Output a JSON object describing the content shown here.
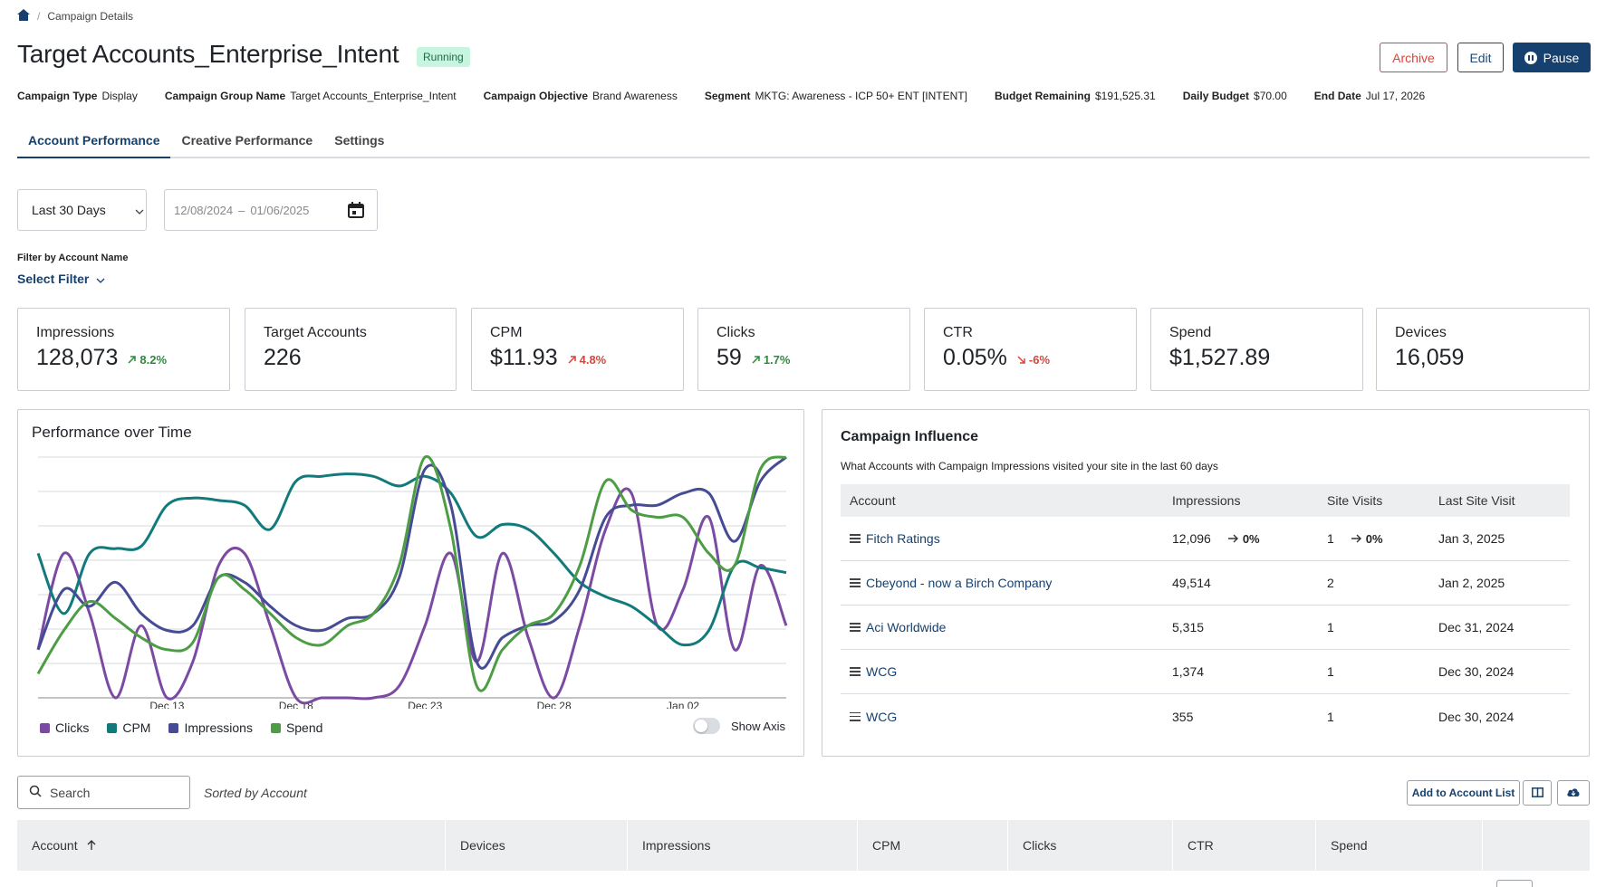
{
  "breadcrumb": {
    "home_icon": "home-icon",
    "current": "Campaign Details"
  },
  "campaign": {
    "title": "Target Accounts_Enterprise_Intent",
    "status": "Running",
    "actions": {
      "archive": "Archive",
      "edit": "Edit",
      "pause": "Pause"
    },
    "meta": [
      {
        "label": "Campaign Type",
        "value": "Display"
      },
      {
        "label": "Campaign Group Name",
        "value": "Target Accounts_Enterprise_Intent"
      },
      {
        "label": "Campaign Objective",
        "value": "Brand Awareness"
      },
      {
        "label": "Segment",
        "value": "MKTG: Awareness - ICP 50+ ENT [INTENT]"
      },
      {
        "label": "Budget Remaining",
        "value": "$191,525.31"
      },
      {
        "label": "Daily Budget",
        "value": "$70.00"
      },
      {
        "label": "End Date",
        "value": "Jul 17, 2026"
      }
    ]
  },
  "tabs": [
    {
      "label": "Account Performance",
      "active": true
    },
    {
      "label": "Creative Performance",
      "active": false
    },
    {
      "label": "Settings",
      "active": false
    }
  ],
  "filters": {
    "range": "Last 30 Days",
    "date_start": "12/08/2024",
    "date_sep": "–",
    "date_end": "01/06/2025",
    "account_filter_label": "Filter by Account Name",
    "account_filter_value": "Select Filter"
  },
  "kpis": [
    {
      "label": "Impressions",
      "value": "128,073",
      "change": "8.2%",
      "direction": "up",
      "tone": "good"
    },
    {
      "label": "Target Accounts",
      "value": "226",
      "change": "",
      "direction": "",
      "tone": ""
    },
    {
      "label": "CPM",
      "value": "$11.93",
      "change": "4.8%",
      "direction": "up",
      "tone": "bad"
    },
    {
      "label": "Clicks",
      "value": "59",
      "change": "1.7%",
      "direction": "up",
      "tone": "good"
    },
    {
      "label": "CTR",
      "value": "0.05%",
      "change": "-6%",
      "direction": "down",
      "tone": "bad"
    },
    {
      "label": "Spend",
      "value": "$1,527.89",
      "change": "",
      "direction": "",
      "tone": ""
    },
    {
      "label": "Devices",
      "value": "16,059",
      "change": "",
      "direction": "",
      "tone": ""
    }
  ],
  "performance": {
    "title": "Performance over Time",
    "show_axis_label": "Show Axis",
    "show_axis": false
  },
  "chart_data": {
    "type": "line",
    "x_ticks": [
      "Dec 13",
      "Dec 18",
      "Dec 23",
      "Dec 28",
      "Jan 02"
    ],
    "x": [
      "Dec 08",
      "Dec 09",
      "Dec 10",
      "Dec 11",
      "Dec 12",
      "Dec 13",
      "Dec 14",
      "Dec 15",
      "Dec 16",
      "Dec 17",
      "Dec 18",
      "Dec 19",
      "Dec 20",
      "Dec 21",
      "Dec 22",
      "Dec 23",
      "Dec 24",
      "Dec 25",
      "Dec 26",
      "Dec 27",
      "Dec 28",
      "Dec 29",
      "Dec 30",
      "Dec 31",
      "Jan 01",
      "Jan 02",
      "Jan 03",
      "Jan 04",
      "Jan 05",
      "Jan 06"
    ],
    "y_scale": "normalized",
    "ylim": [
      0,
      1
    ],
    "grid": true,
    "legend_position": "bottom-left",
    "series": [
      {
        "name": "Clicks",
        "color": "#7b4aa3",
        "values": [
          0.2,
          0.6,
          0.35,
          0.0,
          0.3,
          0.0,
          0.15,
          0.55,
          0.6,
          0.3,
          0.0,
          0.0,
          0.0,
          0.0,
          0.05,
          0.3,
          0.6,
          0.15,
          0.6,
          0.25,
          0.0,
          0.3,
          0.7,
          0.85,
          0.3,
          0.45,
          0.75,
          0.2,
          0.55,
          0.3
        ]
      },
      {
        "name": "CPM",
        "color": "#127a7a",
        "values": [
          0.6,
          0.35,
          0.6,
          0.62,
          0.63,
          0.8,
          0.83,
          0.82,
          0.8,
          0.7,
          0.9,
          0.92,
          0.93,
          0.92,
          0.88,
          0.92,
          0.85,
          0.67,
          0.72,
          0.7,
          0.6,
          0.48,
          0.42,
          0.38,
          0.3,
          0.22,
          0.28,
          0.55,
          0.54,
          0.52
        ]
      },
      {
        "name": "Impressions",
        "color": "#464c94",
        "values": [
          0.2,
          0.45,
          0.38,
          0.48,
          0.35,
          0.28,
          0.3,
          0.5,
          0.48,
          0.38,
          0.3,
          0.28,
          0.33,
          0.35,
          0.5,
          0.95,
          0.8,
          0.15,
          0.25,
          0.3,
          0.32,
          0.45,
          0.75,
          0.8,
          0.8,
          0.85,
          0.85,
          0.65,
          0.9,
          1.0
        ]
      },
      {
        "name": "Spend",
        "color": "#4d9d44",
        "values": [
          0.1,
          0.28,
          0.4,
          0.33,
          0.25,
          0.2,
          0.23,
          0.5,
          0.45,
          0.35,
          0.25,
          0.22,
          0.3,
          0.35,
          0.55,
          1.0,
          0.7,
          0.05,
          0.2,
          0.3,
          0.35,
          0.55,
          0.9,
          0.78,
          0.75,
          0.75,
          0.6,
          0.55,
          0.95,
          1.0
        ]
      }
    ]
  },
  "influence": {
    "title": "Campaign Influence",
    "subtitle": "What Accounts with Campaign Impressions visited your site in the last 60 days",
    "columns": [
      "Account",
      "Impressions",
      "Site Visits",
      "Last Site Visit"
    ],
    "rows": [
      {
        "account": "Fitch Ratings",
        "impressions": "12,096",
        "imp_change": "0%",
        "site_visits": "1",
        "sv_change": "0%",
        "last_visit": "Jan 3, 2025"
      },
      {
        "account": "Cbeyond - now a Birch Company",
        "impressions": "49,514",
        "imp_change": "",
        "site_visits": "2",
        "sv_change": "",
        "last_visit": "Jan 2, 2025"
      },
      {
        "account": "Aci Worldwide",
        "impressions": "5,315",
        "imp_change": "",
        "site_visits": "1",
        "sv_change": "",
        "last_visit": "Dec 31, 2024"
      },
      {
        "account": "WCG",
        "impressions": "1,374",
        "imp_change": "",
        "site_visits": "1",
        "sv_change": "",
        "last_visit": "Dec 30, 2024"
      },
      {
        "account": "WCG",
        "impressions": "355",
        "imp_change": "",
        "site_visits": "1",
        "sv_change": "",
        "last_visit": "Dec 30, 2024"
      }
    ]
  },
  "accounts_table": {
    "search_placeholder": "Search",
    "sorted_by": "Sorted by Account",
    "add_to_list": "Add to Account List",
    "columns": [
      "Account",
      "Devices",
      "Impressions",
      "CPM",
      "Clicks",
      "CTR",
      "Spend",
      ""
    ]
  }
}
